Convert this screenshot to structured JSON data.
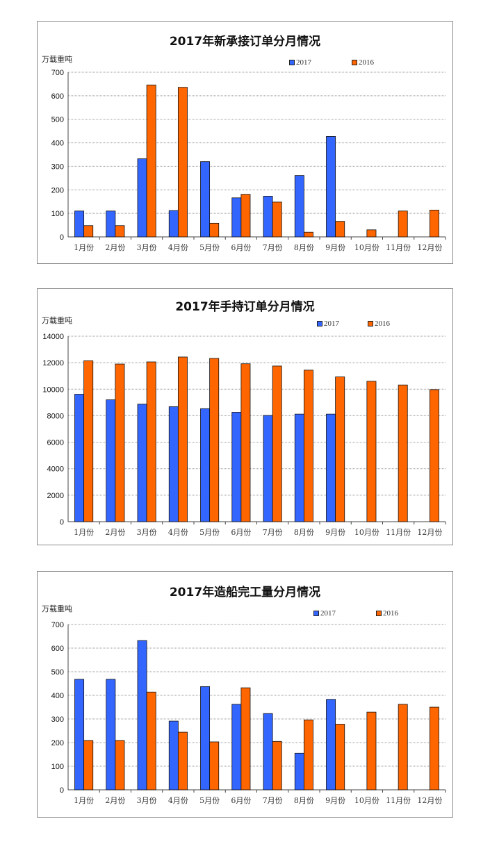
{
  "chart_data": [
    {
      "type": "bar",
      "title": "2017年新承接订单分月情况",
      "ylabel": "万载重吨",
      "ylim": [
        0,
        700
      ],
      "yticks": [
        0,
        100,
        200,
        300,
        400,
        500,
        600,
        700
      ],
      "grid": true,
      "legend": "top-right",
      "categories": [
        "1月份",
        "2月份",
        "3月份",
        "4月份",
        "5月份",
        "6月份",
        "7月份",
        "8月份",
        "9月份",
        "10月份",
        "11月份",
        "12月份"
      ],
      "series": [
        {
          "name": "2017",
          "color": "#3366ff",
          "values": [
            110,
            110,
            332,
            112,
            320,
            166,
            173,
            261,
            427,
            null,
            null,
            null
          ]
        },
        {
          "name": "2016",
          "color": "#ff6600",
          "values": [
            48,
            48,
            646,
            636,
            58,
            181,
            148,
            20,
            66,
            30,
            110,
            114
          ]
        }
      ]
    },
    {
      "type": "bar",
      "title": "2017年手持订单分月情况",
      "ylabel": "万载重吨",
      "ylim": [
        0,
        14000
      ],
      "yticks": [
        0,
        2000,
        4000,
        6000,
        8000,
        10000,
        12000,
        14000
      ],
      "grid": true,
      "legend": "top-right",
      "categories": [
        "1月份",
        "2月份",
        "3月份",
        "4月份",
        "5月份",
        "6月份",
        "7月份",
        "8月份",
        "9月份",
        "10月份",
        "11月份",
        "12月份"
      ],
      "series": [
        {
          "name": "2017",
          "color": "#3366ff",
          "values": [
            9620,
            9200,
            8870,
            8680,
            8530,
            8260,
            8020,
            8120,
            8120,
            null,
            null,
            null
          ]
        },
        {
          "name": "2016",
          "color": "#ff6600",
          "values": [
            12150,
            11900,
            12060,
            12430,
            12330,
            11920,
            11750,
            11440,
            10930,
            10600,
            10320,
            9970
          ]
        }
      ]
    },
    {
      "type": "bar",
      "title": "2017年造船完工量分月情况",
      "ylabel": "万载重吨",
      "ylim": [
        0,
        700
      ],
      "yticks": [
        0,
        100,
        200,
        300,
        400,
        500,
        600,
        700
      ],
      "grid": true,
      "legend": "top-right",
      "categories": [
        "1月份",
        "2月份",
        "3月份",
        "4月份",
        "5月份",
        "6月份",
        "7月份",
        "8月份",
        "9月份",
        "10月份",
        "11月份",
        "12月份"
      ],
      "series": [
        {
          "name": "2017",
          "color": "#3366ff",
          "values": [
            468,
            468,
            632,
            291,
            437,
            362,
            323,
            155,
            383,
            null,
            null,
            null
          ]
        },
        {
          "name": "2016",
          "color": "#ff6600",
          "values": [
            209,
            209,
            414,
            244,
            203,
            432,
            205,
            296,
            278,
            329,
            362,
            350
          ]
        }
      ]
    }
  ]
}
